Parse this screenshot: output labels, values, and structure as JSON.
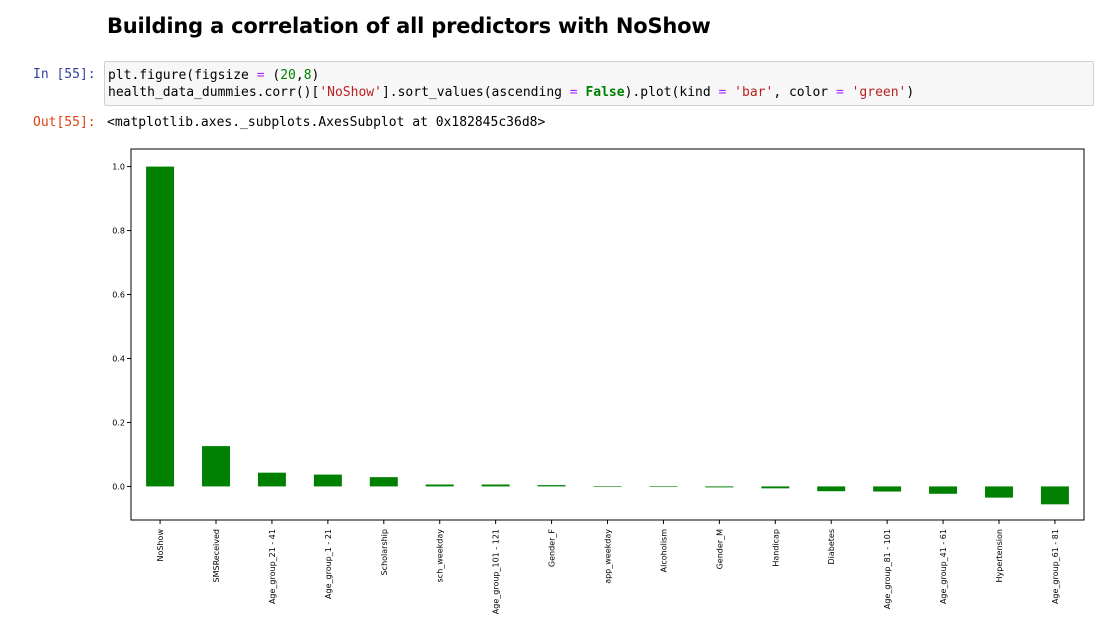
{
  "heading": "Building a correlation of all predictors with NoShow",
  "input_prompt": "In [55]:",
  "output_prompt": "Out[55]:",
  "code": {
    "line1": {
      "a": "plt.figure(figsize ",
      "op": "=",
      "b": " (",
      "n1": "20",
      "c": ",",
      "n2": "8",
      "d": ")"
    },
    "line2": {
      "a": "health_data_dummies.corr()[",
      "s1": "'NoShow'",
      "b": "].sort_values(ascending ",
      "op1": "=",
      "c": " ",
      "kw": "False",
      "d": ").plot(kind ",
      "op2": "=",
      "e": " ",
      "s2": "'bar'",
      "f": ", color ",
      "op3": "=",
      "g": " ",
      "s3": "'green'",
      "h": ")"
    }
  },
  "output_text": "<matplotlib.axes._subplots.AxesSubplot at 0x182845c36d8>",
  "colors": {
    "bar": "#008000",
    "axes": "#000000",
    "prompt_in": "#303f9f",
    "prompt_out": "#d84315",
    "code_bg": "#f7f7f7"
  },
  "chart_data": {
    "type": "bar",
    "categories": [
      "NoShow",
      "SMSReceived",
      "Age_group_21 - 41",
      "Age_group_1 - 21",
      "Scholarship",
      "sch_weekday",
      "Age_group_101 - 121",
      "Gender_F",
      "app_weekday",
      "Alcoholism",
      "Gender_M",
      "Handicap",
      "Diabetes",
      "Age_group_81 - 101",
      "Age_group_41 - 61",
      "Hypertension",
      "Age_group_61 - 81"
    ],
    "values": [
      1.0,
      0.126,
      0.043,
      0.037,
      0.029,
      0.006,
      0.006,
      0.004,
      0.0,
      0.0,
      -0.003,
      -0.006,
      -0.015,
      -0.016,
      -0.023,
      -0.035,
      -0.056
    ],
    "ylim": [
      -0.105,
      1.055
    ],
    "yticks": [
      0.0,
      0.2,
      0.4,
      0.6,
      0.8,
      1.0
    ],
    "ytick_labels": [
      "0.0",
      "0.2",
      "0.4",
      "0.6",
      "0.8",
      "1.0"
    ],
    "title": "",
    "xlabel": "",
    "ylabel": "",
    "grid": false,
    "legend": false
  }
}
